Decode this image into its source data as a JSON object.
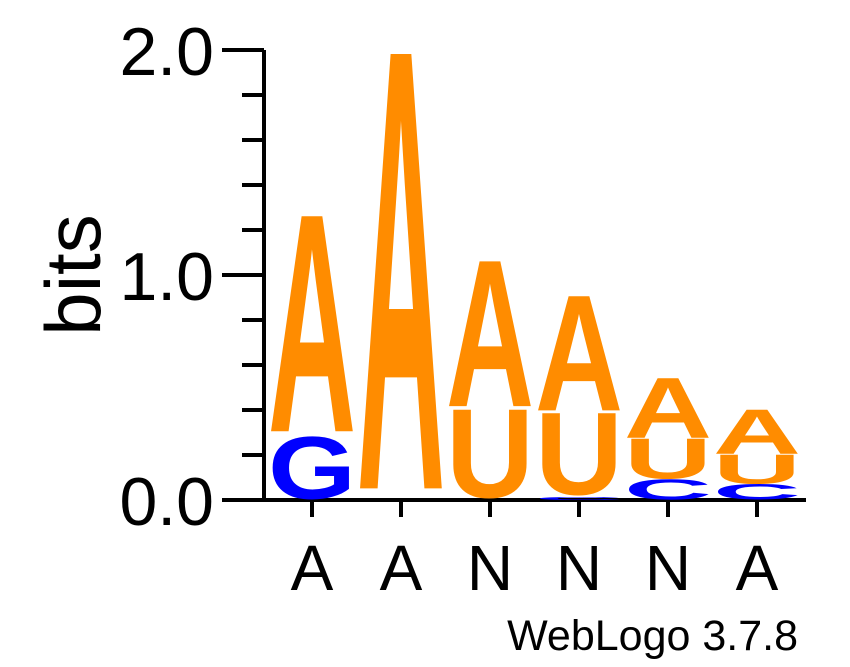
{
  "chart_data": {
    "type": "sequence-logo",
    "ylabel": "bits",
    "ylim": [
      0,
      2
    ],
    "yticks": [
      {
        "value": 0,
        "label": "0.0"
      },
      {
        "value": 1,
        "label": "1.0"
      },
      {
        "value": 2,
        "label": "2.0"
      }
    ],
    "minor_tick_step": 0.2,
    "positions": [
      {
        "label": "A",
        "stack": [
          {
            "letter": "G",
            "bits": 0.28,
            "color": "#0000ff"
          },
          {
            "letter": "A",
            "bits": 0.98,
            "color": "#ff8c00"
          }
        ]
      },
      {
        "label": "A",
        "stack": [
          {
            "letter": "A",
            "bits": 1.98,
            "color": "#ff8c00"
          }
        ]
      },
      {
        "label": "N",
        "stack": [
          {
            "letter": "U",
            "bits": 0.4,
            "color": "#ff8c00"
          },
          {
            "letter": "A",
            "bits": 0.66,
            "color": "#ff8c00"
          }
        ]
      },
      {
        "label": "N",
        "stack": [
          {
            "letter": "C",
            "bits": 0.015,
            "color": "#0000ff"
          },
          {
            "letter": "U",
            "bits": 0.37,
            "color": "#ff8c00"
          },
          {
            "letter": "A",
            "bits": 0.52,
            "color": "#ff8c00"
          }
        ]
      },
      {
        "label": "N",
        "stack": [
          {
            "letter": "C",
            "bits": 0.09,
            "color": "#0000ff"
          },
          {
            "letter": "U",
            "bits": 0.18,
            "color": "#ff8c00"
          },
          {
            "letter": "A",
            "bits": 0.27,
            "color": "#ff8c00"
          }
        ]
      },
      {
        "label": "A",
        "stack": [
          {
            "letter": "C",
            "bits": 0.07,
            "color": "#0000ff"
          },
          {
            "letter": "U",
            "bits": 0.13,
            "color": "#ff8c00"
          },
          {
            "letter": "A",
            "bits": 0.2,
            "color": "#ff8c00"
          }
        ]
      }
    ]
  },
  "footer": {
    "credit": "WebLogo 3.7.8"
  }
}
